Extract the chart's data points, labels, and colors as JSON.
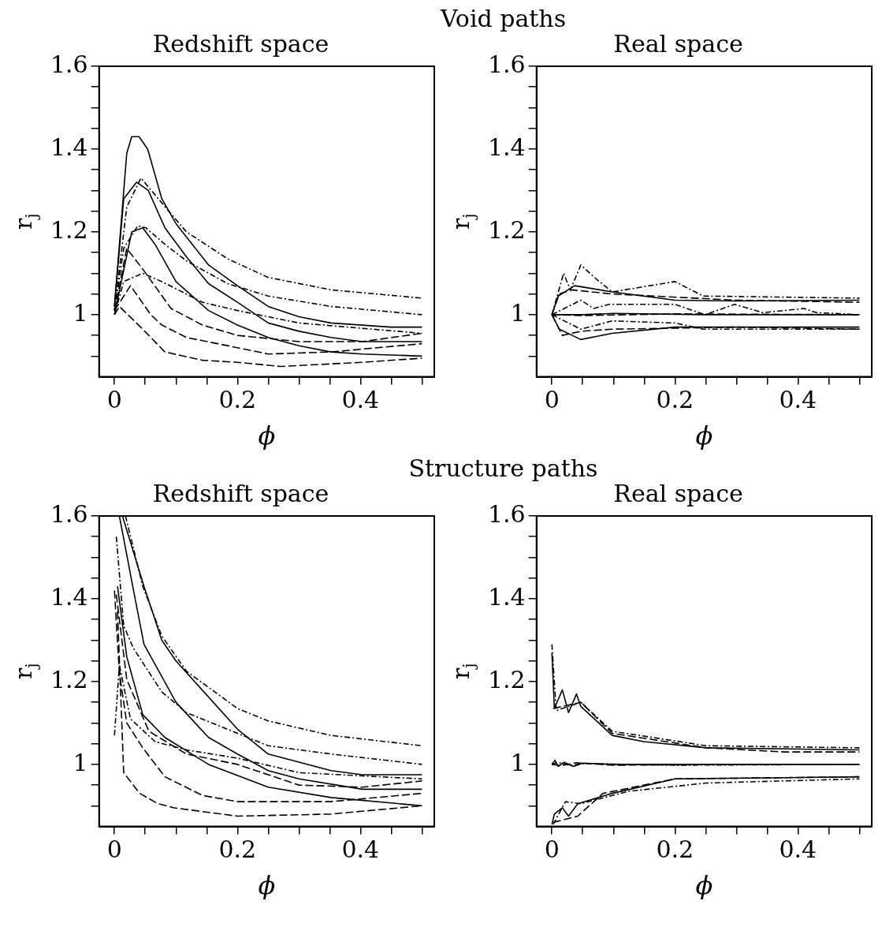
{
  "chart_data": [
    {
      "type": "line",
      "title": "Void paths",
      "subtitle": "Redshift space",
      "xlabel": "ϕ",
      "ylabel": "r$_{j}$",
      "xlim": [
        -0.025,
        0.52
      ],
      "ylim": [
        0.85,
        1.6
      ],
      "xticks": [
        0,
        {
          "value": 0.05,
          "label": null
        },
        {
          "value": 0.1,
          "label": null
        },
        {
          "value": 0.15,
          "label": null
        },
        0.2,
        {
          "value": 0.25,
          "label": null
        },
        {
          "value": 0.3,
          "label": null
        },
        {
          "value": 0.35,
          "label": null
        },
        0.4,
        {
          "value": 0.45,
          "label": null
        },
        {
          "value": 0.5,
          "label": null
        }
      ],
      "yticks": [
        {
          "value": 0.9,
          "label": null
        },
        {
          "value": 0.95,
          "label": null
        },
        1,
        {
          "value": 1.05,
          "label": null
        },
        {
          "value": 1.1,
          "label": null
        },
        {
          "value": 1.15,
          "label": null
        },
        1.2,
        {
          "value": 1.25,
          "label": null
        },
        {
          "value": 1.3,
          "label": null
        },
        {
          "value": 1.35,
          "label": null
        },
        1.4,
        {
          "value": 1.45,
          "label": null
        },
        {
          "value": 1.5,
          "label": null
        },
        {
          "value": 1.55,
          "label": null
        },
        1.6
      ],
      "series": [
        {
          "color": "#000000",
          "line_style": "solid",
          "x": [
            0,
            0.015,
            0.036,
            0.055,
            0.082,
            0.117,
            0.153,
            0.2,
            0.25,
            0.3,
            0.352,
            0.403,
            0.5
          ],
          "values": [
            1.02,
            1.28,
            1.32,
            1.3,
            1.21,
            1.14,
            1.075,
            1.03,
            0.98,
            0.96,
            0.945,
            0.935,
            0.935
          ]
        },
        {
          "color": "#000000",
          "line_style": "solid",
          "x": [
            0,
            0.02,
            0.028,
            0.04,
            0.054,
            0.077,
            0.1,
            0.153,
            0.2,
            0.25,
            0.3,
            0.352,
            0.449,
            0.5
          ],
          "values": [
            1.02,
            1.39,
            1.43,
            1.43,
            1.4,
            1.28,
            1.22,
            1.12,
            1.07,
            1.02,
            0.995,
            0.98,
            0.97,
            0.97
          ]
        },
        {
          "color": "#000000",
          "line_style": "solid",
          "x": [
            0,
            0.028,
            0.046,
            0.066,
            0.1,
            0.153,
            0.2,
            0.25,
            0.3,
            0.352,
            0.403,
            0.5
          ],
          "values": [
            1.0,
            1.2,
            1.21,
            1.17,
            1.08,
            1.01,
            0.975,
            0.945,
            0.925,
            0.91,
            0.905,
            0.9
          ]
        },
        {
          "color": "#000000",
          "line_style": "dashdot",
          "x": [
            0,
            0.015,
            0.038,
            0.051,
            0.082,
            0.117,
            0.184,
            0.25,
            0.352,
            0.5
          ],
          "values": [
            1.01,
            1.16,
            1.215,
            1.21,
            1.17,
            1.13,
            1.075,
            1.045,
            1.02,
            1.0
          ]
        },
        {
          "color": "#000000",
          "line_style": "dashdot",
          "x": [
            0,
            0.02,
            0.043,
            0.077,
            0.117,
            0.184,
            0.25,
            0.352,
            0.5
          ],
          "values": [
            1.01,
            1.26,
            1.33,
            1.27,
            1.2,
            1.135,
            1.09,
            1.06,
            1.04
          ]
        },
        {
          "color": "#000000",
          "line_style": "dashdot",
          "x": [
            0,
            0.015,
            0.046,
            0.077,
            0.143,
            0.2,
            0.3,
            0.5
          ],
          "values": [
            1.0,
            1.08,
            1.1,
            1.08,
            1.03,
            1.01,
            0.98,
            0.955
          ]
        },
        {
          "color": "#000000",
          "line_style": "dashed",
          "x": [
            0,
            0.026,
            0.059,
            0.077,
            0.117,
            0.168,
            0.25,
            0.352,
            0.5
          ],
          "values": [
            1.01,
            1.07,
            1.0,
            0.975,
            0.945,
            0.93,
            0.905,
            0.91,
            0.93
          ]
        },
        {
          "color": "#000000",
          "line_style": "dashed",
          "x": [
            0,
            0.02,
            0.046,
            0.092,
            0.143,
            0.2,
            0.3,
            0.403,
            0.5
          ],
          "values": [
            1.01,
            1.16,
            1.11,
            1.015,
            0.975,
            0.95,
            0.935,
            0.935,
            0.955
          ]
        },
        {
          "color": "#000000",
          "line_style": "dashed",
          "x": [
            0,
            0.008,
            0.046,
            0.082,
            0.143,
            0.2,
            0.27,
            0.403,
            0.5
          ],
          "values": [
            1.0,
            1.02,
            0.965,
            0.91,
            0.89,
            0.885,
            0.875,
            0.885,
            0.895
          ]
        }
      ]
    },
    {
      "type": "line",
      "subtitle": "Real space",
      "xlabel": "ϕ",
      "ylabel": "r$_{j}$",
      "xlim": [
        -0.025,
        0.52
      ],
      "ylim": [
        0.85,
        1.6
      ],
      "xticks": [
        0,
        {
          "value": 0.05,
          "label": null
        },
        {
          "value": 0.1,
          "label": null
        },
        {
          "value": 0.15,
          "label": null
        },
        0.2,
        {
          "value": 0.25,
          "label": null
        },
        {
          "value": 0.3,
          "label": null
        },
        {
          "value": 0.35,
          "label": null
        },
        0.4,
        {
          "value": 0.45,
          "label": null
        },
        {
          "value": 0.5,
          "label": null
        }
      ],
      "yticks": [
        {
          "value": 0.9,
          "label": null
        },
        {
          "value": 0.95,
          "label": null
        },
        1,
        {
          "value": 1.05,
          "label": null
        },
        {
          "value": 1.1,
          "label": null
        },
        {
          "value": 1.15,
          "label": null
        },
        1.2,
        {
          "value": 1.25,
          "label": null
        },
        {
          "value": 1.3,
          "label": null
        },
        {
          "value": 1.35,
          "label": null
        },
        1.4,
        {
          "value": 1.45,
          "label": null
        },
        {
          "value": 1.5,
          "label": null
        },
        {
          "value": 1.55,
          "label": null
        },
        1.6
      ],
      "series": [
        {
          "color": "#000000",
          "line_style": "solid",
          "x": [
            0,
            0.05,
            0.1,
            0.25,
            0.5
          ],
          "values": [
            1.0,
            1.0,
            1.003,
            1.0,
            1.0
          ]
        },
        {
          "color": "#000000",
          "line_style": "solid",
          "x": [
            0,
            0.01,
            0.037,
            0.098,
            0.2,
            0.3,
            0.5
          ],
          "values": [
            1.0,
            1.045,
            1.07,
            1.055,
            1.035,
            1.033,
            1.035
          ]
        },
        {
          "color": "#000000",
          "line_style": "solid",
          "x": [
            0,
            0.012,
            0.047,
            0.098,
            0.2,
            0.5
          ],
          "values": [
            1.0,
            0.965,
            0.94,
            0.955,
            0.97,
            0.97
          ]
        },
        {
          "color": "#000000",
          "line_style": "dashdot",
          "x": [
            0,
            0.047,
            0.068,
            0.093,
            0.2,
            0.249,
            0.297,
            0.343,
            0.41,
            0.43,
            0.5
          ],
          "values": [
            1.0,
            1.035,
            1.015,
            1.025,
            1.025,
            1.0,
            1.025,
            1.005,
            1.015,
            1.005,
            1.0
          ]
        },
        {
          "color": "#000000",
          "line_style": "dashdot",
          "x": [
            0,
            0.019,
            0.03,
            0.047,
            0.073,
            0.098,
            0.2,
            0.246,
            0.5
          ],
          "values": [
            1.0,
            1.1,
            1.06,
            1.12,
            1.085,
            1.055,
            1.08,
            1.045,
            1.04
          ]
        },
        {
          "color": "#000000",
          "line_style": "dashdot",
          "x": [
            0,
            0.047,
            0.098,
            0.2,
            0.246,
            0.5
          ],
          "values": [
            1.0,
            0.965,
            0.985,
            0.98,
            0.965,
            0.965
          ]
        },
        {
          "color": "#000000",
          "line_style": "dashed",
          "x": [
            0,
            0.05,
            0.2,
            0.5
          ],
          "values": [
            1.0,
            0.998,
            1.002,
            1.0
          ]
        },
        {
          "color": "#000000",
          "line_style": "dashed",
          "x": [
            0,
            0.012,
            0.032,
            0.098,
            0.3,
            0.5
          ],
          "values": [
            1.0,
            1.05,
            1.06,
            1.05,
            1.035,
            1.03
          ]
        },
        {
          "color": "#000000",
          "line_style": "dashed",
          "x": [
            0,
            0.017,
            0.047,
            0.098,
            0.3,
            0.5
          ],
          "values": [
            1.0,
            0.95,
            0.96,
            0.965,
            0.97,
            0.965
          ]
        }
      ]
    },
    {
      "type": "line",
      "title": "Structure paths",
      "subtitle": "Redshift space",
      "xlabel": "ϕ",
      "ylabel": "r$_{j}$",
      "xlim": [
        -0.025,
        0.52
      ],
      "ylim": [
        0.85,
        1.6
      ],
      "xticks": [
        0,
        {
          "value": 0.05,
          "label": null
        },
        {
          "value": 0.1,
          "label": null
        },
        {
          "value": 0.15,
          "label": null
        },
        0.2,
        {
          "value": 0.25,
          "label": null
        },
        {
          "value": 0.3,
          "label": null
        },
        {
          "value": 0.35,
          "label": null
        },
        0.4,
        {
          "value": 0.45,
          "label": null
        },
        {
          "value": 0.5,
          "label": null
        }
      ],
      "yticks": [
        {
          "value": 0.9,
          "label": null
        },
        {
          "value": 0.95,
          "label": null
        },
        1,
        {
          "value": 1.05,
          "label": null
        },
        {
          "value": 1.1,
          "label": null
        },
        {
          "value": 1.15,
          "label": null
        },
        1.2,
        {
          "value": 1.25,
          "label": null
        },
        {
          "value": 1.3,
          "label": null
        },
        {
          "value": 1.35,
          "label": null
        },
        1.4,
        {
          "value": 1.45,
          "label": null
        },
        {
          "value": 1.5,
          "label": null
        },
        {
          "value": 1.55,
          "label": null
        },
        1.6
      ],
      "series": [
        {
          "color": "#000000",
          "line_style": "solid",
          "x": [
            0.008,
            0.031,
            0.048,
            0.1,
            0.153,
            0.2,
            0.25,
            0.3,
            0.403,
            0.5
          ],
          "values": [
            1.6,
            1.42,
            1.29,
            1.15,
            1.065,
            1.025,
            0.985,
            0.965,
            0.94,
            0.94
          ]
        },
        {
          "color": "#000000",
          "line_style": "solid",
          "x": [
            0.013,
            0.048,
            0.077,
            0.1,
            0.2,
            0.25,
            0.352,
            0.403,
            0.5
          ],
          "values": [
            1.6,
            1.43,
            1.3,
            1.25,
            1.085,
            1.025,
            0.985,
            0.975,
            0.975
          ]
        },
        {
          "color": "#000000",
          "line_style": "solid",
          "x": [
            0.005,
            0.02,
            0.046,
            0.082,
            0.153,
            0.25,
            0.352,
            0.5
          ],
          "values": [
            1.43,
            1.26,
            1.12,
            1.065,
            1.0,
            0.945,
            0.92,
            0.9
          ]
        },
        {
          "color": "#000000",
          "line_style": "dashdot",
          "x": [
            0.003,
            0.015,
            0.031,
            0.077,
            0.117,
            0.2,
            0.25,
            0.352,
            0.5
          ],
          "values": [
            1.55,
            1.335,
            1.28,
            1.175,
            1.125,
            1.075,
            1.045,
            1.025,
            1.0
          ]
        },
        {
          "color": "#000000",
          "line_style": "dashdot",
          "x": [
            0.018,
            0.046,
            0.077,
            0.117,
            0.2,
            0.25,
            0.352,
            0.5
          ],
          "values": [
            1.6,
            1.43,
            1.31,
            1.225,
            1.135,
            1.105,
            1.07,
            1.045
          ]
        },
        {
          "color": "#000000",
          "line_style": "dashdot",
          "x": [
            0,
            0.008,
            0.026,
            0.066,
            0.117,
            0.2,
            0.3,
            0.5
          ],
          "values": [
            1.07,
            1.24,
            1.11,
            1.055,
            1.035,
            1.015,
            0.98,
            0.965
          ]
        },
        {
          "color": "#000000",
          "line_style": "dashed",
          "x": [
            0,
            0.008,
            0.02,
            0.046,
            0.082,
            0.143,
            0.2,
            0.352,
            0.5
          ],
          "values": [
            1.42,
            1.22,
            1.1,
            1.04,
            0.97,
            0.925,
            0.91,
            0.91,
            0.93
          ]
        },
        {
          "color": "#000000",
          "line_style": "dashed",
          "x": [
            0.003,
            0.02,
            0.056,
            0.117,
            0.2,
            0.3,
            0.403,
            0.5
          ],
          "values": [
            1.41,
            1.205,
            1.08,
            1.025,
            1.0,
            0.95,
            0.945,
            0.96
          ]
        },
        {
          "color": "#000000",
          "line_style": "dashed",
          "x": [
            0.005,
            0.015,
            0.041,
            0.071,
            0.097,
            0.2,
            0.352,
            0.5
          ],
          "values": [
            1.37,
            0.98,
            0.93,
            0.905,
            0.895,
            0.875,
            0.88,
            0.9
          ]
        }
      ]
    },
    {
      "type": "line",
      "subtitle": "Real space",
      "xlabel": "ϕ",
      "ylabel": "r$_{j}$",
      "xlim": [
        -0.025,
        0.52
      ],
      "ylim": [
        0.85,
        1.6
      ],
      "xticks": [
        0,
        {
          "value": 0.05,
          "label": null
        },
        {
          "value": 0.1,
          "label": null
        },
        {
          "value": 0.15,
          "label": null
        },
        0.2,
        {
          "value": 0.25,
          "label": null
        },
        {
          "value": 0.3,
          "label": null
        },
        {
          "value": 0.35,
          "label": null
        },
        0.4,
        {
          "value": 0.45,
          "label": null
        },
        {
          "value": 0.5,
          "label": null
        }
      ],
      "yticks": [
        {
          "value": 0.9,
          "label": null
        },
        {
          "value": 0.95,
          "label": null
        },
        1,
        {
          "value": 1.05,
          "label": null
        },
        {
          "value": 1.1,
          "label": null
        },
        {
          "value": 1.15,
          "label": null
        },
        1.2,
        {
          "value": 1.25,
          "label": null
        },
        {
          "value": 1.3,
          "label": null
        },
        {
          "value": 1.35,
          "label": null
        },
        1.4,
        {
          "value": 1.45,
          "label": null
        },
        {
          "value": 1.5,
          "label": null
        },
        {
          "value": 1.55,
          "label": null
        },
        1.6
      ],
      "series": [
        {
          "color": "#000000",
          "line_style": "solid",
          "x": [
            0,
            0.005,
            0.01,
            0.02,
            0.035,
            0.05,
            0.1,
            0.5
          ],
          "values": [
            1.0,
            1.01,
            0.995,
            1.005,
            0.995,
            1.003,
            1.0,
            1.0
          ]
        },
        {
          "color": "#000000",
          "line_style": "solid",
          "x": [
            0,
            0.004,
            0.017,
            0.027,
            0.04,
            0.047,
            0.098,
            0.149,
            0.251,
            0.5
          ],
          "values": [
            1.27,
            1.135,
            1.18,
            1.125,
            1.17,
            1.14,
            1.07,
            1.055,
            1.04,
            1.035
          ]
        },
        {
          "color": "#000000",
          "line_style": "solid",
          "x": [
            0,
            0.004,
            0.017,
            0.027,
            0.042,
            0.098,
            0.2,
            0.5
          ],
          "values": [
            0.855,
            0.88,
            0.895,
            0.875,
            0.905,
            0.93,
            0.965,
            0.97
          ]
        },
        {
          "color": "#000000",
          "line_style": "dashdot",
          "x": [
            0,
            0.01,
            0.03,
            0.05,
            0.2,
            0.5
          ],
          "values": [
            1.0,
            1.005,
            0.997,
            1.002,
            0.998,
            1.0
          ]
        },
        {
          "color": "#000000",
          "line_style": "dashdot",
          "x": [
            0,
            0.007,
            0.047,
            0.098,
            0.251,
            0.5
          ],
          "values": [
            1.29,
            1.13,
            1.15,
            1.08,
            1.045,
            1.04
          ]
        },
        {
          "color": "#000000",
          "line_style": "dashdot",
          "x": [
            0.002,
            0.022,
            0.047,
            0.124,
            0.251,
            0.5
          ],
          "values": [
            0.855,
            0.91,
            0.905,
            0.935,
            0.955,
            0.965
          ]
        },
        {
          "color": "#000000",
          "line_style": "dashed",
          "x": [
            0,
            0.015,
            0.04,
            0.1,
            0.3,
            0.5
          ],
          "values": [
            1.0,
            0.997,
            1.004,
            0.998,
            1.0,
            1.0
          ]
        },
        {
          "color": "#000000",
          "line_style": "dashed",
          "x": [
            0.002,
            0.047,
            0.098,
            0.251,
            0.379,
            0.5
          ],
          "values": [
            1.135,
            1.15,
            1.075,
            1.04,
            1.03,
            1.03
          ]
        },
        {
          "color": "#000000",
          "line_style": "dashed",
          "x": [
            0.002,
            0.042,
            0.083,
            0.2,
            0.5
          ],
          "values": [
            0.86,
            0.875,
            0.93,
            0.965,
            0.97
          ]
        }
      ]
    }
  ]
}
